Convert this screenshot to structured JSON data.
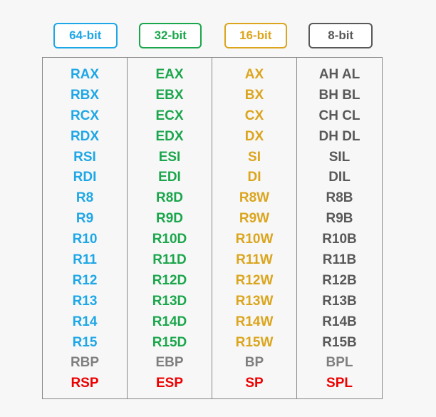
{
  "colors": {
    "c64": "#1ea7e6",
    "c32": "#1ba64c",
    "c16": "#dba51d",
    "c8": "#595959",
    "gray": "#7f7f7f",
    "red": "#ee0000"
  },
  "headers": [
    "64-bit",
    "32-bit",
    "16-bit",
    "8-bit"
  ],
  "columns": [
    [
      "RAX",
      "RBX",
      "RCX",
      "RDX",
      "RSI",
      "RDI",
      "R8",
      "R9",
      "R10",
      "R11",
      "R12",
      "R13",
      "R14",
      "R15",
      "RBP",
      "RSP"
    ],
    [
      "EAX",
      "EBX",
      "ECX",
      "EDX",
      "ESI",
      "EDI",
      "R8D",
      "R9D",
      "R10D",
      "R11D",
      "R12D",
      "R13D",
      "R14D",
      "R15D",
      "EBP",
      "ESP"
    ],
    [
      "AX",
      "BX",
      "CX",
      "DX",
      "SI",
      "DI",
      "R8W",
      "R9W",
      "R10W",
      "R11W",
      "R12W",
      "R13W",
      "R14W",
      "R15W",
      "BP",
      "SP"
    ],
    [
      "AH AL",
      "BH BL",
      "CH CL",
      "DH DL",
      "SIL",
      "DIL",
      "R8B",
      "R9B",
      "R10B",
      "R11B",
      "R12B",
      "R13B",
      "R14B",
      "R15B",
      "BPL",
      "SPL"
    ]
  ]
}
